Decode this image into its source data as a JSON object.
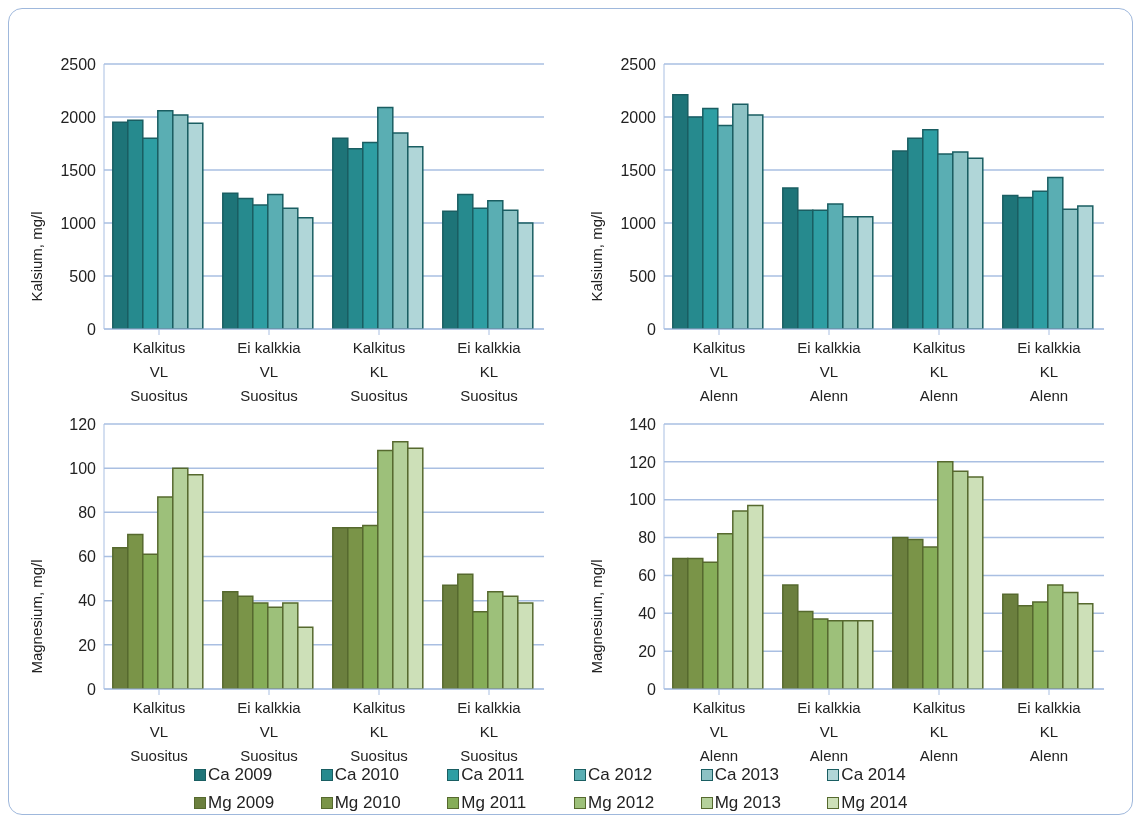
{
  "chart_data": [
    {
      "type": "bar",
      "ylabel": "Kalsium, mg/l",
      "categories": [
        "Kalkitus\nVL\nSuositus",
        "Ei kalkkia\nVL\nSuositus",
        "Kalkitus\nKL\nSuositus",
        "Ei kalkkia\nKL\nSuositus"
      ],
      "ylim": [
        0,
        2500
      ],
      "yticks": [
        0,
        500,
        1000,
        1500,
        2000,
        2500
      ],
      "grid": "y",
      "legend": "bottom",
      "series": [
        {
          "name": "Ca 2009",
          "color": "#1e7478",
          "values": [
            1950,
            1280,
            1800,
            1110
          ]
        },
        {
          "name": "Ca 2010",
          "color": "#268a8e",
          "values": [
            1970,
            1230,
            1700,
            1270
          ]
        },
        {
          "name": "Ca 2011",
          "color": "#2e9ea3",
          "values": [
            1800,
            1170,
            1760,
            1140
          ]
        },
        {
          "name": "Ca 2012",
          "color": "#5aaeb3",
          "values": [
            2060,
            1270,
            2090,
            1210
          ]
        },
        {
          "name": "Ca 2013",
          "color": "#8cc2c4",
          "values": [
            2020,
            1140,
            1850,
            1120
          ]
        },
        {
          "name": "Ca 2014",
          "color": "#b0d6d8",
          "values": [
            1940,
            1050,
            1720,
            1000
          ]
        }
      ]
    },
    {
      "type": "bar",
      "ylabel": "Kalsium, mg/l",
      "categories": [
        "Kalkitus\nVL\nAlenn",
        "Ei kalkkia\nVL\nAlenn",
        "Kalkitus\nKL\nAlenn",
        "Ei kalkkia\nKL\nAlenn"
      ],
      "ylim": [
        0,
        2500
      ],
      "yticks": [
        0,
        500,
        1000,
        1500,
        2000,
        2500
      ],
      "grid": "y",
      "series": [
        {
          "color": "#1e7478",
          "values": [
            2210,
            1330,
            1680,
            1260
          ]
        },
        {
          "color": "#268a8e",
          "values": [
            2000,
            1120,
            1800,
            1240
          ]
        },
        {
          "color": "#2e9ea3",
          "values": [
            2080,
            1120,
            1880,
            1300
          ]
        },
        {
          "color": "#5aaeb3",
          "values": [
            1920,
            1180,
            1650,
            1430
          ]
        },
        {
          "color": "#8cc2c4",
          "values": [
            2120,
            1060,
            1670,
            1130
          ]
        },
        {
          "color": "#b0d6d8",
          "values": [
            2020,
            1060,
            1610,
            1160
          ]
        }
      ]
    },
    {
      "type": "bar",
      "ylabel": "Magnesium, mg/l",
      "categories": [
        "Kalkitus\nVL\nSuositus",
        "Ei kalkkia\nVL\nSuositus",
        "Kalkitus\nKL\nSuositus",
        "Ei kalkkia\nKL\nSuositus"
      ],
      "ylim": [
        0,
        120
      ],
      "yticks": [
        0,
        20,
        40,
        60,
        80,
        100,
        120
      ],
      "grid": "y",
      "legend": "bottom",
      "series": [
        {
          "name": "Mg 2009",
          "color": "#6b7f3e",
          "values": [
            64,
            44,
            73,
            47
          ]
        },
        {
          "name": "Mg 2010",
          "color": "#7a9448",
          "values": [
            70,
            42,
            73,
            52
          ]
        },
        {
          "name": "Mg 2011",
          "color": "#86ad58",
          "values": [
            61,
            39,
            74,
            35
          ]
        },
        {
          "name": "Mg 2012",
          "color": "#9dc07a",
          "values": [
            87,
            37,
            108,
            44
          ]
        },
        {
          "name": "Mg 2013",
          "color": "#b5d19b",
          "values": [
            100,
            39,
            112,
            42
          ]
        },
        {
          "name": "Mg 2014",
          "color": "#cde0b8",
          "values": [
            97,
            28,
            109,
            39
          ]
        }
      ]
    },
    {
      "type": "bar",
      "ylabel": "Magnesium, mg/l",
      "categories": [
        "Kalkitus\nVL\nAlenn",
        "Ei kalkkia\nVL\nAlenn",
        "Kalkitus\nKL\nAlenn",
        "Ei kalkkia\nKL\nAlenn"
      ],
      "ylim": [
        0,
        140
      ],
      "yticks": [
        0,
        20,
        40,
        60,
        80,
        100,
        120,
        140
      ],
      "grid": "y",
      "series": [
        {
          "color": "#6b7f3e",
          "values": [
            69,
            55,
            80,
            50
          ]
        },
        {
          "color": "#7a9448",
          "values": [
            69,
            41,
            79,
            44
          ]
        },
        {
          "color": "#86ad58",
          "values": [
            67,
            37,
            75,
            46
          ]
        },
        {
          "color": "#9dc07a",
          "values": [
            82,
            36,
            120,
            55
          ]
        },
        {
          "color": "#b5d19b",
          "values": [
            94,
            36,
            115,
            51
          ]
        },
        {
          "color": "#cde0b8",
          "values": [
            97,
            36,
            112,
            45
          ]
        }
      ]
    }
  ]
}
